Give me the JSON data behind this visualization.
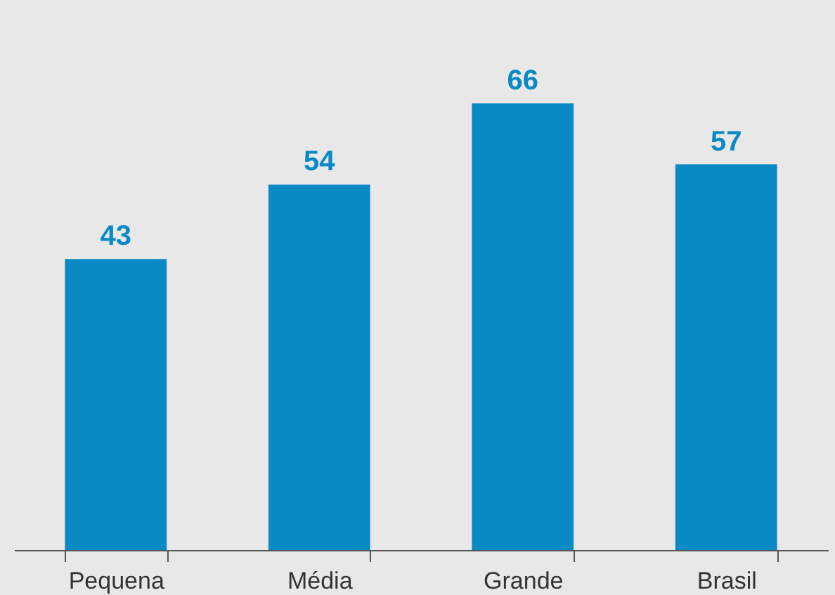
{
  "chart_data": {
    "type": "bar",
    "categories": [
      "Pequena",
      "Média",
      "Grande",
      "Brasil"
    ],
    "values": [
      43,
      54,
      66,
      57
    ],
    "color": "#0a8ac4",
    "data_labels": true,
    "tick_labels": "x"
  }
}
